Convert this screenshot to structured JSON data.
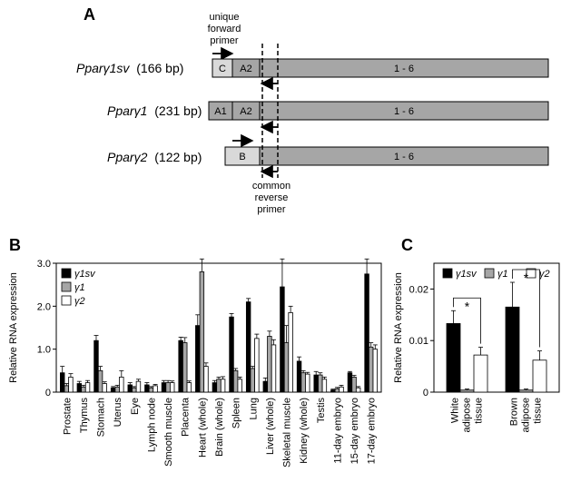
{
  "panels": {
    "a": "A",
    "b": "B",
    "c": "C"
  },
  "diagram": {
    "forward_primer_label": [
      "unique",
      "forward",
      "primer"
    ],
    "reverse_primer_label": [
      "common",
      "reverse",
      "primer"
    ],
    "transcripts": [
      {
        "gene": "Pparγ1sv",
        "size": "(166 bp)",
        "exons": [
          "C",
          "A2",
          "1 - 6"
        ]
      },
      {
        "gene": "Pparγ1",
        "size": "(231 bp)",
        "exons": [
          "A1",
          "A2",
          "1 - 6"
        ]
      },
      {
        "gene": "Pparγ2",
        "size": "(122 bp)",
        "exons": [
          "B",
          "1 - 6"
        ]
      }
    ],
    "colors": {
      "exon_light": "#d9d9d9",
      "exon_dark": "#a6a6a6"
    }
  },
  "chart_data": [
    {
      "type": "bar",
      "panel": "B",
      "ylabel": "Relative RNA expression",
      "ylim": [
        0,
        3.0
      ],
      "yticks": [
        "0",
        "1.0",
        "2.0",
        "3.0"
      ],
      "legend_placement": "top-left",
      "categories": [
        "Prostate",
        "Thymus",
        "Stomach",
        "Uterus",
        "Eye",
        "Lymph node",
        "Smooth muscle",
        "Placenta",
        "Heart (whole)",
        "Brain (whole)",
        "Spleen",
        "Lung",
        "Liver (whole)",
        "Skeletal muscle",
        "Kidney (whole)",
        "Testis",
        "11-day embryo",
        "15-day embryo",
        "17-day embryo"
      ],
      "series": [
        {
          "name": "γ1sv",
          "color": "#000000",
          "values": [
            0.45,
            0.2,
            1.2,
            0.1,
            0.17,
            0.17,
            0.22,
            1.2,
            1.55,
            0.22,
            1.75,
            2.1,
            0.25,
            2.45,
            0.72,
            0.4,
            0.05,
            0.45,
            2.75
          ],
          "errors": [
            0.15,
            0.05,
            0.12,
            0.03,
            0.05,
            0.05,
            0.05,
            0.08,
            0.25,
            0.05,
            0.08,
            0.08,
            0.08,
            0.65,
            0.1,
            0.08,
            0.02,
            0.03,
            0.35
          ]
        },
        {
          "name": "γ1",
          "color": "#a6a6a6",
          "values": [
            0.15,
            0.12,
            0.5,
            0.12,
            0.1,
            0.1,
            0.22,
            1.15,
            2.8,
            0.3,
            0.5,
            0.55,
            1.3,
            1.15,
            0.45,
            0.4,
            0.08,
            0.35,
            1.05
          ],
          "errors": [
            0.05,
            0.04,
            0.1,
            0.04,
            0.03,
            0.03,
            0.05,
            0.12,
            0.3,
            0.05,
            0.05,
            0.05,
            0.12,
            0.4,
            0.05,
            0.05,
            0.03,
            0.04,
            0.1
          ]
        },
        {
          "name": "γ2",
          "color": "#ffffff",
          "values": [
            0.35,
            0.22,
            0.2,
            0.35,
            0.25,
            0.15,
            0.22,
            0.22,
            0.6,
            0.3,
            0.3,
            1.25,
            1.1,
            1.85,
            0.42,
            0.3,
            0.12,
            0.1,
            1.0
          ],
          "errors": [
            0.08,
            0.05,
            0.04,
            0.15,
            0.05,
            0.03,
            0.04,
            0.04,
            0.08,
            0.06,
            0.05,
            0.1,
            0.12,
            0.15,
            0.04,
            0.05,
            0.04,
            0.03,
            0.1
          ]
        }
      ]
    },
    {
      "type": "bar",
      "panel": "C",
      "ylabel": "Relative RNA expression",
      "ylim": [
        0,
        0.025
      ],
      "yticks": [
        "0",
        "0.01",
        "0.02"
      ],
      "legend_placement": "top",
      "categories": [
        [
          "White",
          "adipose",
          "tissue"
        ],
        [
          "Brown",
          "adipose",
          "tissue"
        ]
      ],
      "series": [
        {
          "name": "γ1sv",
          "color": "#000000",
          "values": [
            0.0133,
            0.0165
          ],
          "errors": [
            0.0025,
            0.0048
          ]
        },
        {
          "name": "γ1",
          "color": "#a6a6a6",
          "values": [
            0.0004,
            0.0004
          ],
          "errors": [
            0.0002,
            0.0002
          ]
        },
        {
          "name": "γ2",
          "color": "#ffffff",
          "values": [
            0.0072,
            0.0062
          ],
          "errors": [
            0.0015,
            0.0018
          ]
        }
      ],
      "annotations": [
        "*",
        "*"
      ]
    }
  ]
}
